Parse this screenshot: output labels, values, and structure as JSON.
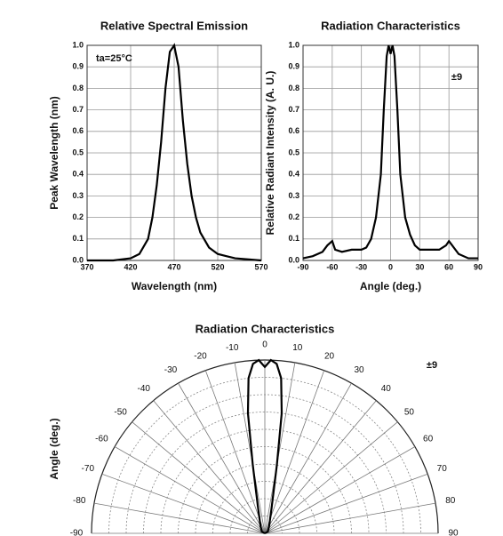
{
  "chart_data": [
    {
      "type": "line",
      "title": "Relative Spectral Emission",
      "x_label": "Wavelength (nm)",
      "y_label": "Peak Wavelength (nm)",
      "annotation": "ta=25°C",
      "x": [
        370,
        400,
        420,
        430,
        440,
        445,
        450,
        455,
        460,
        465,
        470,
        475,
        480,
        485,
        490,
        495,
        500,
        510,
        520,
        540,
        570
      ],
      "series": [
        {
          "color": "#000000",
          "values": [
            0,
            0,
            0.01,
            0.03,
            0.1,
            0.2,
            0.35,
            0.55,
            0.8,
            0.97,
            1.0,
            0.9,
            0.65,
            0.45,
            0.3,
            0.2,
            0.13,
            0.06,
            0.03,
            0.01,
            0
          ]
        }
      ],
      "xlim": [
        370,
        570
      ],
      "xticks": [
        370,
        420,
        470,
        520,
        570
      ],
      "ylim": [
        0,
        1
      ],
      "yticks": [
        {
          "value": 0,
          "label": "0.0"
        },
        0.1,
        0.2,
        0.3,
        0.4,
        0.5,
        0.6,
        0.7,
        0.8,
        0.9,
        {
          "value": 1,
          "label": "1.0"
        }
      ],
      "grid": true
    },
    {
      "type": "line",
      "title": "Radiation Characteristics",
      "x_label": "Angle (deg.)",
      "y_label": "Relative Radiant Intensity (A. U.)",
      "annotation": "±9",
      "x": [
        -90,
        -80,
        -70,
        -65,
        -60,
        -57,
        -50,
        -40,
        -30,
        -25,
        -20,
        -15,
        -10,
        -7,
        -4,
        -2,
        0,
        2,
        4,
        7,
        10,
        15,
        20,
        25,
        30,
        40,
        50,
        57,
        60,
        65,
        70,
        80,
        90
      ],
      "series": [
        {
          "color": "#000000",
          "values": [
            0.01,
            0.02,
            0.04,
            0.07,
            0.09,
            0.05,
            0.04,
            0.05,
            0.05,
            0.06,
            0.1,
            0.2,
            0.4,
            0.7,
            0.95,
            1.0,
            0.96,
            1.0,
            0.95,
            0.7,
            0.4,
            0.2,
            0.12,
            0.07,
            0.05,
            0.05,
            0.05,
            0.07,
            0.09,
            0.06,
            0.03,
            0.01,
            0.01
          ]
        }
      ],
      "xlim": [
        -90,
        90
      ],
      "xticks": [
        -90,
        -60,
        -30,
        0,
        30,
        60,
        90
      ],
      "ylim": [
        0,
        1
      ],
      "yticks": [
        {
          "value": 0,
          "label": "0.0"
        },
        0.1,
        0.2,
        0.3,
        0.4,
        0.5,
        0.6,
        0.7,
        0.8,
        0.9,
        {
          "value": 1,
          "label": "1.0"
        }
      ],
      "grid": true
    },
    {
      "type": "polar",
      "title": "Radiation Characteristics",
      "y_label": "Angle (deg.)",
      "annotation": "±9",
      "theta": [
        -90,
        -60,
        -30,
        -15,
        -10,
        -8,
        -6,
        -4,
        -2,
        0,
        2,
        4,
        6,
        8,
        10,
        15,
        30,
        60,
        90
      ],
      "series": [
        {
          "color": "#000000",
          "values": [
            0,
            0.02,
            0.05,
            0.15,
            0.4,
            0.7,
            0.9,
            0.98,
            1.0,
            0.96,
            1.0,
            0.98,
            0.9,
            0.7,
            0.4,
            0.15,
            0.05,
            0.02,
            0
          ]
        }
      ],
      "thetalim": [
        -90,
        90
      ],
      "thetaticks": [
        -90,
        -80,
        -70,
        -60,
        -50,
        -40,
        -30,
        -20,
        -10,
        0,
        10,
        20,
        30,
        40,
        50,
        60,
        70,
        80,
        90
      ],
      "rlim": [
        0,
        1
      ],
      "rticks": [
        0.1,
        0.2,
        0.3,
        0.4,
        0.5,
        0.6,
        0.7,
        0.8,
        0.9,
        1
      ]
    }
  ]
}
